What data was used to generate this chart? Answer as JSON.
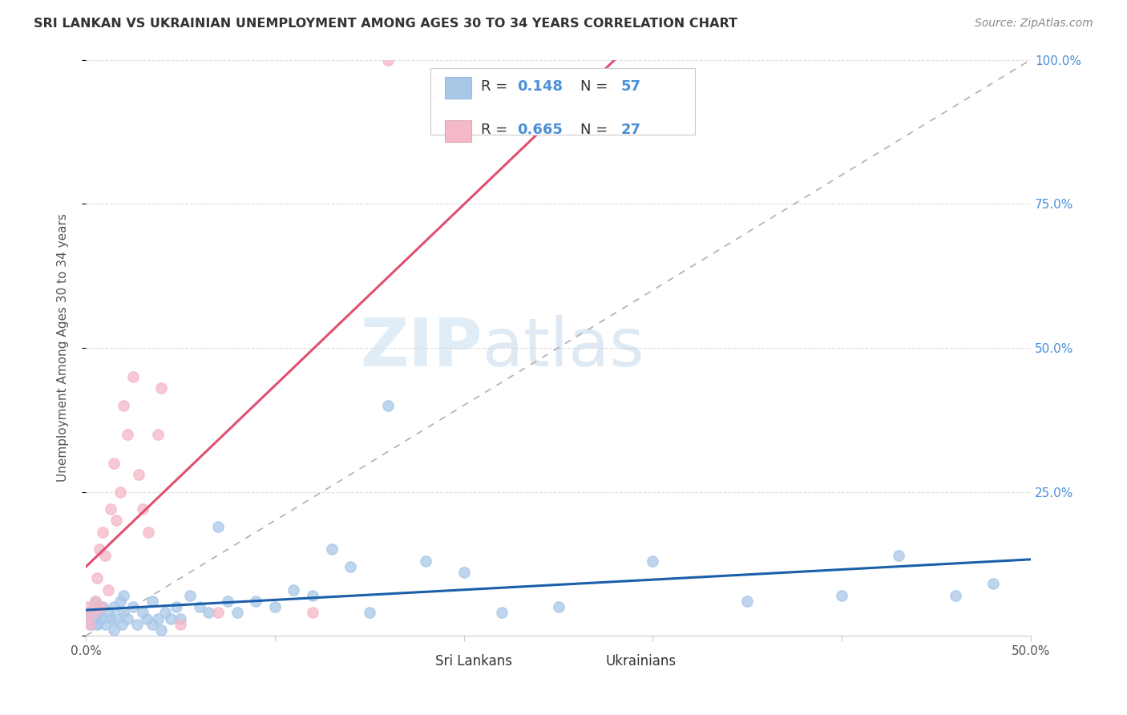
{
  "title": "SRI LANKAN VS UKRAINIAN UNEMPLOYMENT AMONG AGES 30 TO 34 YEARS CORRELATION CHART",
  "source": "Source: ZipAtlas.com",
  "ylabel": "Unemployment Among Ages 30 to 34 years",
  "xlim": [
    0.0,
    0.5
  ],
  "ylim": [
    0.0,
    1.0
  ],
  "xticks": [
    0.0,
    0.1,
    0.2,
    0.3,
    0.4,
    0.5
  ],
  "yticks": [
    0.0,
    0.25,
    0.5,
    0.75,
    1.0
  ],
  "sri_lankans_color": "#a8c8e8",
  "ukrainians_color": "#f4b8c8",
  "sri_lankans_line_color": "#1a5fa8",
  "ukrainians_line_color": "#e05070",
  "diagonal_color": "#b0b0b0",
  "watermark_zip": "ZIP",
  "watermark_atlas": "atlas",
  "sri_lankans_R": 0.148,
  "sri_lankans_N": 57,
  "ukrainians_R": 0.665,
  "ukrainians_N": 27,
  "sri_lankans_x": [
    0.0,
    0.002,
    0.003,
    0.004,
    0.005,
    0.005,
    0.006,
    0.007,
    0.008,
    0.009,
    0.01,
    0.012,
    0.013,
    0.015,
    0.015,
    0.016,
    0.018,
    0.019,
    0.02,
    0.02,
    0.022,
    0.025,
    0.027,
    0.03,
    0.032,
    0.035,
    0.035,
    0.038,
    0.04,
    0.042,
    0.045,
    0.048,
    0.05,
    0.055,
    0.06,
    0.065,
    0.07,
    0.075,
    0.08,
    0.09,
    0.1,
    0.11,
    0.12,
    0.13,
    0.14,
    0.15,
    0.16,
    0.18,
    0.2,
    0.22,
    0.25,
    0.3,
    0.35,
    0.4,
    0.43,
    0.46,
    0.48
  ],
  "sri_lankans_y": [
    0.03,
    0.04,
    0.02,
    0.05,
    0.03,
    0.06,
    0.02,
    0.04,
    0.03,
    0.05,
    0.02,
    0.04,
    0.03,
    0.01,
    0.05,
    0.03,
    0.06,
    0.02,
    0.04,
    0.07,
    0.03,
    0.05,
    0.02,
    0.04,
    0.03,
    0.02,
    0.06,
    0.03,
    0.01,
    0.04,
    0.03,
    0.05,
    0.03,
    0.07,
    0.05,
    0.04,
    0.19,
    0.06,
    0.04,
    0.06,
    0.05,
    0.08,
    0.07,
    0.15,
    0.12,
    0.04,
    0.4,
    0.13,
    0.11,
    0.04,
    0.05,
    0.13,
    0.06,
    0.07,
    0.14,
    0.07,
    0.09
  ],
  "ukrainians_x": [
    0.0,
    0.001,
    0.002,
    0.004,
    0.005,
    0.006,
    0.007,
    0.008,
    0.009,
    0.01,
    0.012,
    0.013,
    0.015,
    0.016,
    0.018,
    0.02,
    0.022,
    0.025,
    0.028,
    0.03,
    0.033,
    0.038,
    0.04,
    0.05,
    0.07,
    0.12,
    0.16
  ],
  "ukrainians_y": [
    0.03,
    0.05,
    0.02,
    0.04,
    0.06,
    0.1,
    0.15,
    0.05,
    0.18,
    0.14,
    0.08,
    0.22,
    0.3,
    0.2,
    0.25,
    0.4,
    0.35,
    0.45,
    0.28,
    0.22,
    0.18,
    0.35,
    0.43,
    0.02,
    0.04,
    0.04,
    1.0
  ]
}
